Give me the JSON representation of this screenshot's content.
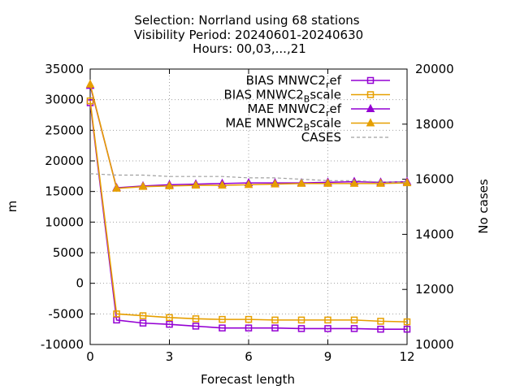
{
  "chart_data": {
    "type": "line",
    "title_lines": [
      "Selection: Norrland using    68 stations",
      "Visibility   Period: 20240601-20240630",
      "Hours: 00,03,...,21"
    ],
    "xlabel": "Forecast length",
    "ylabel": "m",
    "y2label": "No cases",
    "xlim": [
      0,
      12
    ],
    "ylim": [
      -10000,
      35000
    ],
    "y2lim": [
      10000,
      20000
    ],
    "xticks": [
      0,
      3,
      6,
      9,
      12
    ],
    "yticks": [
      -10000,
      -5000,
      0,
      5000,
      10000,
      15000,
      20000,
      25000,
      30000,
      35000
    ],
    "y2ticks": [
      10000,
      12000,
      14000,
      16000,
      18000,
      20000
    ],
    "grid": true,
    "legend_position": "top-right",
    "x": [
      0,
      1,
      2,
      3,
      4,
      5,
      6,
      7,
      8,
      9,
      10,
      11,
      12
    ],
    "series": [
      {
        "name_main": "BIAS MNWC2",
        "name_sub": "r",
        "name_tail": "ef",
        "color": "#9400d3",
        "marker": "square",
        "axis": "y",
        "values": [
          29500,
          -6000,
          -6500,
          -6700,
          -7000,
          -7300,
          -7300,
          -7300,
          -7400,
          -7400,
          -7400,
          -7500,
          -7500
        ]
      },
      {
        "name_main": "BIAS MNWC2",
        "name_sub": "B",
        "name_tail": "scale",
        "color": "#e69f00",
        "marker": "square",
        "axis": "y",
        "values": [
          29800,
          -5000,
          -5300,
          -5600,
          -5800,
          -5900,
          -5900,
          -6000,
          -6000,
          -6000,
          -6000,
          -6200,
          -6300
        ]
      },
      {
        "name_main": "MAE MNWC2",
        "name_sub": "r",
        "name_tail": "ef",
        "color": "#9400d3",
        "marker": "triangle",
        "axis": "y",
        "values": [
          32300,
          15600,
          15900,
          16100,
          16200,
          16300,
          16400,
          16400,
          16400,
          16500,
          16600,
          16500,
          16600
        ]
      },
      {
        "name_main": "MAE MNWC2",
        "name_sub": "B",
        "name_tail": "scale",
        "color": "#e69f00",
        "marker": "triangle",
        "axis": "y",
        "values": [
          32500,
          15500,
          15800,
          15900,
          16000,
          16000,
          16100,
          16200,
          16300,
          16300,
          16300,
          16300,
          16400
        ]
      },
      {
        "name_main": "CASES",
        "name_sub": "",
        "name_tail": "",
        "color": "#a0a0a0",
        "marker": "none",
        "dashed": true,
        "axis": "y2",
        "values": [
          16200,
          16150,
          16150,
          16100,
          16100,
          16100,
          16050,
          16050,
          16000,
          15950,
          15950,
          15900,
          15900
        ]
      }
    ]
  }
}
